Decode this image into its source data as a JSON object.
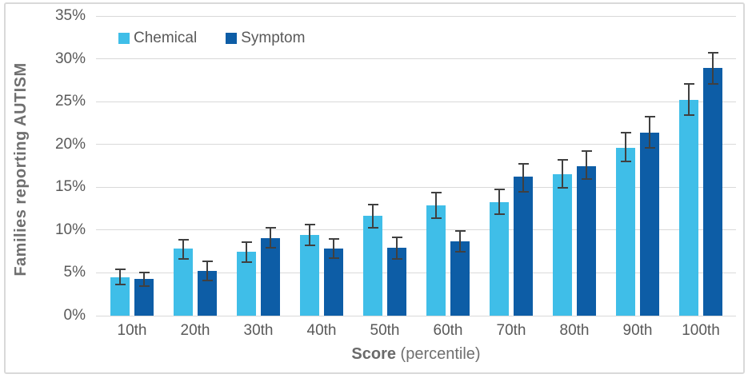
{
  "chart_data": {
    "type": "bar",
    "title": "",
    "ylabel": "Families reporting AUTISM",
    "xlabel": "Score (percentile)",
    "xlabel_bold": "Score",
    "xlabel_rest": " (percentile)",
    "ylim": [
      0,
      35
    ],
    "ytick_step": 5,
    "ytick_labels": [
      "0%",
      "5%",
      "10%",
      "15%",
      "20%",
      "25%",
      "30%",
      "35%"
    ],
    "grid": true,
    "legend_position": "top-left",
    "error_bars": true,
    "categories": [
      "10th",
      "20th",
      "30th",
      "40th",
      "50th",
      "60th",
      "70th",
      "80th",
      "90th",
      "100th"
    ],
    "series": [
      {
        "name": "Chemical",
        "color": "#3fbee8",
        "values": [
          4.5,
          7.8,
          7.5,
          9.4,
          11.7,
          12.9,
          13.3,
          16.5,
          19.6,
          25.2
        ],
        "error_low": [
          3.5,
          6.5,
          6.2,
          8.1,
          10.2,
          11.3,
          11.8,
          14.8,
          17.9,
          23.3
        ],
        "error_high": [
          5.5,
          9.0,
          8.7,
          10.7,
          13.1,
          14.5,
          14.8,
          18.3,
          21.5,
          27.2
        ]
      },
      {
        "name": "Symptom",
        "color": "#0d5da6",
        "values": [
          4.3,
          5.2,
          9.1,
          7.8,
          7.9,
          8.7,
          16.2,
          17.5,
          21.4,
          28.9
        ],
        "error_low": [
          3.4,
          4.0,
          7.8,
          6.6,
          6.5,
          7.4,
          14.4,
          15.9,
          19.5,
          27.0
        ],
        "error_high": [
          5.1,
          6.4,
          10.4,
          9.1,
          9.2,
          10.0,
          17.8,
          19.3,
          23.3,
          30.8
        ]
      }
    ]
  },
  "colors": {
    "chemical": "#3fbee8",
    "symptom": "#0d5da6",
    "gridline": "#d9d9d9",
    "error_bar": "#404040",
    "tick_text": "#595959",
    "title_text": "#6f6f6f",
    "border": "#d9d9d9"
  }
}
